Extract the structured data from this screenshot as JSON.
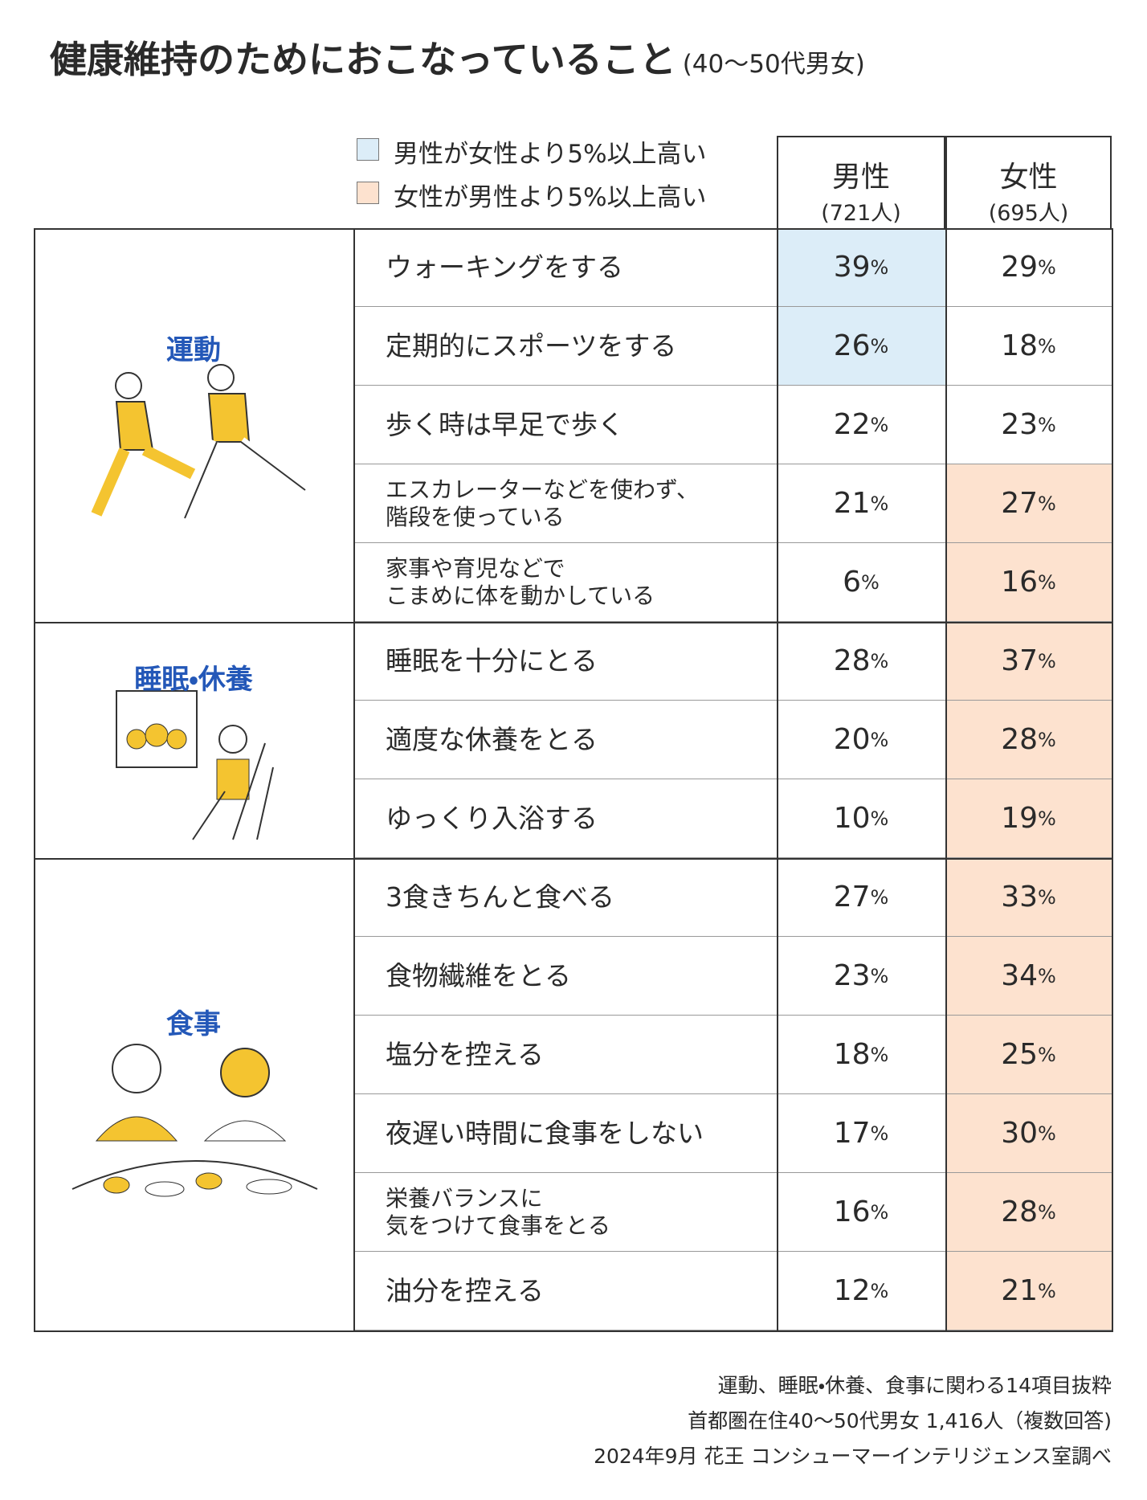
{
  "title": "健康維持のためにおこなっていること",
  "subtitle": "(40〜50代男女)",
  "legend": [
    {
      "label": "男性が女性より5%以上高い",
      "color": "#dcedf8"
    },
    {
      "label": "女性が男性より5%以上高い",
      "color": "#fde2cf"
    }
  ],
  "table": {
    "unit": "%",
    "columns": [
      {
        "label": "男性",
        "count": "(721人)"
      },
      {
        "label": "女性",
        "count": "(695人)"
      }
    ],
    "groups": [
      {
        "name": "運動",
        "rows": [
          {
            "item": "ウォーキングをする",
            "values": [
              39,
              29
            ],
            "highlight": 0
          },
          {
            "item": "定期的にスポーツをする",
            "values": [
              26,
              18
            ],
            "highlight": 0
          },
          {
            "item": "歩く時は早足で歩く",
            "values": [
              22,
              23
            ]
          },
          {
            "item": "エスカレーターなどを使わず、\n階段を使っている",
            "values": [
              21,
              27
            ],
            "highlight": 1
          },
          {
            "item": "家事や育児などで\nこまめに体を動かしている",
            "values": [
              6,
              16
            ],
            "highlight": 1
          }
        ]
      },
      {
        "name": "睡眠・休養",
        "rows": [
          {
            "item": "睡眠を十分にとる",
            "values": [
              28,
              37
            ],
            "highlight": 1
          },
          {
            "item": "適度な休養をとる",
            "values": [
              20,
              28
            ],
            "highlight": 1
          },
          {
            "item": "ゆっくり入浴する",
            "values": [
              10,
              19
            ],
            "highlight": 1
          }
        ]
      },
      {
        "name": "食事",
        "rows": [
          {
            "item": "3食きちんと食べる",
            "values": [
              27,
              33
            ],
            "highlight": 1
          },
          {
            "item": "食物繊維をとる",
            "values": [
              23,
              34
            ],
            "highlight": 1
          },
          {
            "item": "塩分を控える",
            "values": [
              18,
              25
            ],
            "highlight": 1
          },
          {
            "item": "夜遅い時間に食事をしない",
            "values": [
              17,
              30
            ],
            "highlight": 1
          },
          {
            "item": "栄養バランスに\n気をつけて食事をとる",
            "values": [
              16,
              28
            ],
            "highlight": 1
          },
          {
            "item": "油分を控える",
            "values": [
              12,
              21
            ],
            "highlight": 1
          }
        ]
      }
    ]
  },
  "notes": [
    "運動、睡眠・休養、食事に関わる14項目抜粋",
    "首都圏在住40〜50代男女 1,416人（複数回答)",
    "2024年9月 花王 コンシューマーインテリジェンス室調べ"
  ]
}
